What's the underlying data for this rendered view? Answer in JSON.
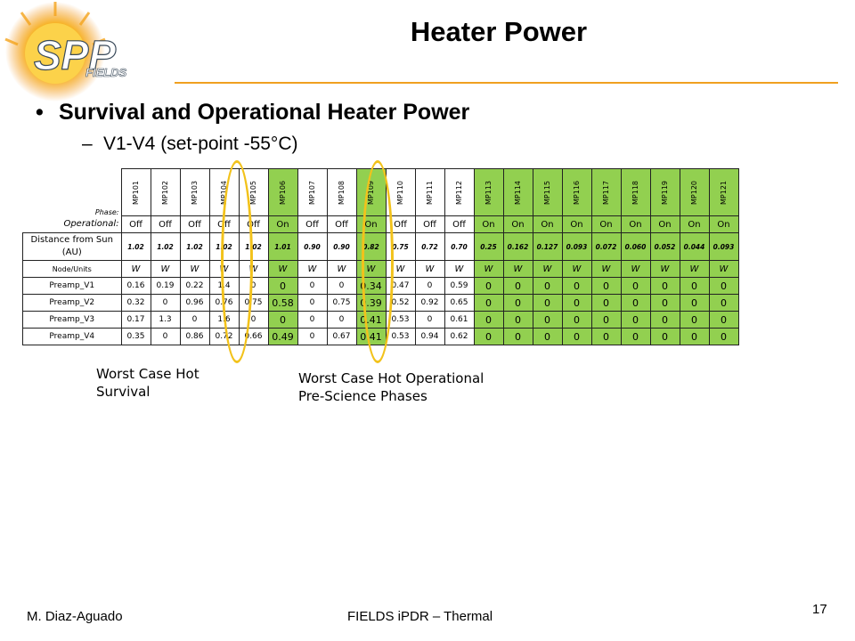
{
  "logo": {
    "text_primary": "SPP",
    "text_secondary": "FIELDS"
  },
  "title": "Heater Power",
  "bullets": {
    "main": "Survival and Operational Heater Power",
    "sub": "V1-V4 (set-point -55°C)"
  },
  "table": {
    "phase_label": "Phase:",
    "operational_label": "Operational:",
    "distance_label": "Distance from Sun (AU)",
    "units_label": "Node/Units",
    "phases": [
      "MP101",
      "MP102",
      "MP103",
      "MP104",
      "MP105",
      "MP106",
      "MP107",
      "MP108",
      "MP109",
      "MP110",
      "MP111",
      "MP112",
      "MP113",
      "MP114",
      "MP115",
      "MP116",
      "MP117",
      "MP118",
      "MP119",
      "MP120",
      "MP121"
    ],
    "operational": [
      "Off",
      "Off",
      "Off",
      "Off",
      "Off",
      "On",
      "Off",
      "Off",
      "On",
      "Off",
      "Off",
      "Off",
      "On",
      "On",
      "On",
      "On",
      "On",
      "On",
      "On",
      "On",
      "On"
    ],
    "distance": [
      "1.02",
      "1.02",
      "1.02",
      "1.02",
      "1.02",
      "1.01",
      "0.90",
      "0.90",
      "0.82",
      "0.75",
      "0.72",
      "0.70",
      "0.25",
      "0.162",
      "0.127",
      "0.093",
      "0.072",
      "0.060",
      "0.052",
      "0.044",
      "0.093"
    ],
    "units": [
      "W",
      "W",
      "W",
      "W",
      "W",
      "W",
      "W",
      "W",
      "W",
      "W",
      "W",
      "W",
      "W",
      "W",
      "W",
      "W",
      "W",
      "W",
      "W",
      "W",
      "W"
    ],
    "rows": [
      {
        "label": "Preamp_V1",
        "values": [
          "0.16",
          "0.19",
          "0.22",
          "1.4",
          "0",
          "0",
          "0",
          "0",
          "0.34",
          "0.47",
          "0",
          "0.59",
          "0",
          "0",
          "0",
          "0",
          "0",
          "0",
          "0",
          "0",
          "0"
        ]
      },
      {
        "label": "Preamp_V2",
        "values": [
          "0.32",
          "0",
          "0.96",
          "0.76",
          "0.75",
          "0.58",
          "0",
          "0.75",
          "0.39",
          "0.52",
          "0.92",
          "0.65",
          "0",
          "0",
          "0",
          "0",
          "0",
          "0",
          "0",
          "0",
          "0"
        ]
      },
      {
        "label": "Preamp_V3",
        "values": [
          "0.17",
          "1.3",
          "0",
          "1.6",
          "0",
          "0",
          "0",
          "0",
          "0.41",
          "0.53",
          "0",
          "0.61",
          "0",
          "0",
          "0",
          "0",
          "0",
          "0",
          "0",
          "0",
          "0"
        ]
      },
      {
        "label": "Preamp_V4",
        "values": [
          "0.35",
          "0",
          "0.86",
          "0.72",
          "0.66",
          "0.49",
          "0",
          "0.67",
          "0.41",
          "0.53",
          "0.94",
          "0.62",
          "0",
          "0",
          "0",
          "0",
          "0",
          "0",
          "0",
          "0",
          "0"
        ]
      }
    ]
  },
  "annotations": {
    "survival": "Worst Case Hot Survival",
    "operational": "Worst Case Hot Operational Pre-Science Phases"
  },
  "footer": {
    "author": "M. Diaz-Aguado",
    "center": "FIELDS iPDR – Thermal",
    "page": "17"
  },
  "colors": {
    "highlight_green": "#92d050",
    "accent_orange": "#f0a020",
    "ellipse_yellow": "#f2c21b"
  }
}
